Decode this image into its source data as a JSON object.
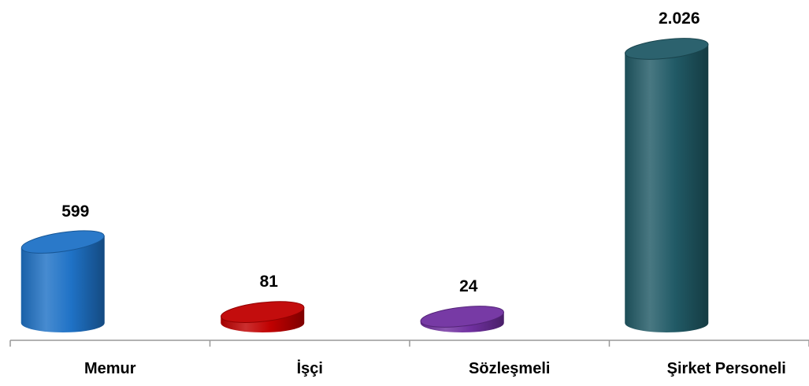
{
  "chart_data": {
    "type": "bar",
    "style": "3d-cylinder",
    "categories": [
      "Memur",
      "İşçi",
      "Sözleşmeli",
      "Şirket Personeli"
    ],
    "values": [
      599,
      81,
      24,
      2026
    ],
    "value_labels": [
      "599",
      "81",
      "24",
      "2.026"
    ],
    "colors": [
      "#1f72c6",
      "#c00000",
      "#7030a0",
      "#215a66"
    ],
    "title": "",
    "xlabel": "",
    "ylabel": "",
    "ylim": [
      0,
      2026
    ],
    "grid": false,
    "legend": "none"
  }
}
